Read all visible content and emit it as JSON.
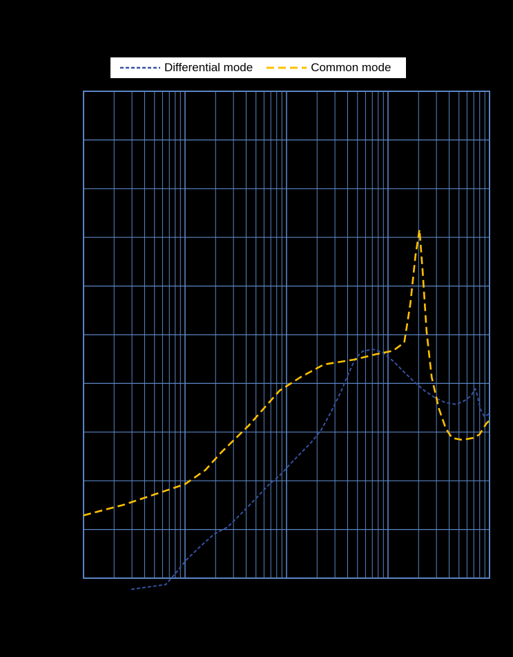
{
  "legend": {
    "items": [
      {
        "label": "Differential mode"
      },
      {
        "label": "Common mode"
      }
    ]
  },
  "colors": {
    "background": "#000000",
    "grid": "#5B86C5",
    "plot_border": "#5B86C5",
    "legend_background": "#FFFFFF",
    "legend_text": "#000000"
  },
  "chart_data": {
    "type": "line",
    "title": "",
    "x_axis": {
      "scale": "log",
      "decades": 4,
      "tick_labels_visible": false
    },
    "y_axis": {
      "divisions": 10,
      "tick_labels_visible": false
    },
    "grid": {
      "on": true,
      "color": "#5B86C5"
    },
    "legend_position": "top-center",
    "series": [
      {
        "name": "Differential mode",
        "color": "#3452A3",
        "dash": [
          5,
          3
        ],
        "width": 2,
        "points": [
          [
            0.47,
            -0.23
          ],
          [
            0.81,
            -0.13
          ],
          [
            0.91,
            0.11
          ],
          [
            1.01,
            0.37
          ],
          [
            1.15,
            0.65
          ],
          [
            1.29,
            0.91
          ],
          [
            1.42,
            1.05
          ],
          [
            1.56,
            1.34
          ],
          [
            1.69,
            1.62
          ],
          [
            1.83,
            1.93
          ],
          [
            1.93,
            2.1
          ],
          [
            2.03,
            2.33
          ],
          [
            2.14,
            2.57
          ],
          [
            2.24,
            2.78
          ],
          [
            2.34,
            3.04
          ],
          [
            2.44,
            3.42
          ],
          [
            2.54,
            3.85
          ],
          [
            2.61,
            4.2
          ],
          [
            2.68,
            4.52
          ],
          [
            2.75,
            4.66
          ],
          [
            2.85,
            4.7
          ],
          [
            2.95,
            4.63
          ],
          [
            3.05,
            4.46
          ],
          [
            3.16,
            4.23
          ],
          [
            3.26,
            4.03
          ],
          [
            3.36,
            3.85
          ],
          [
            3.46,
            3.71
          ],
          [
            3.56,
            3.61
          ],
          [
            3.67,
            3.57
          ],
          [
            3.75,
            3.64
          ],
          [
            3.82,
            3.75
          ],
          [
            3.86,
            3.89
          ],
          [
            3.88,
            3.75
          ],
          [
            3.91,
            3.47
          ],
          [
            3.95,
            3.32
          ],
          [
            4.0,
            3.38
          ]
        ]
      },
      {
        "name": "Common mode",
        "color": "#FFC000",
        "dash": [
          11,
          6
        ],
        "width": 2.6,
        "points": [
          [
            0.0,
            1.29
          ],
          [
            0.4,
            1.51
          ],
          [
            0.7,
            1.72
          ],
          [
            1.0,
            1.93
          ],
          [
            1.2,
            2.22
          ],
          [
            1.35,
            2.57
          ],
          [
            1.63,
            3.14
          ],
          [
            1.93,
            3.85
          ],
          [
            2.14,
            4.13
          ],
          [
            2.37,
            4.39
          ],
          [
            2.67,
            4.49
          ],
          [
            2.88,
            4.6
          ],
          [
            3.05,
            4.67
          ],
          [
            3.16,
            4.84
          ],
          [
            3.22,
            5.63
          ],
          [
            3.27,
            6.62
          ],
          [
            3.31,
            7.16
          ],
          [
            3.34,
            6.33
          ],
          [
            3.38,
            5.06
          ],
          [
            3.43,
            4.13
          ],
          [
            3.5,
            3.49
          ],
          [
            3.57,
            3.07
          ],
          [
            3.63,
            2.88
          ],
          [
            3.73,
            2.84
          ],
          [
            3.84,
            2.88
          ],
          [
            3.9,
            2.95
          ],
          [
            3.97,
            3.18
          ],
          [
            4.0,
            3.24
          ]
        ]
      }
    ]
  }
}
